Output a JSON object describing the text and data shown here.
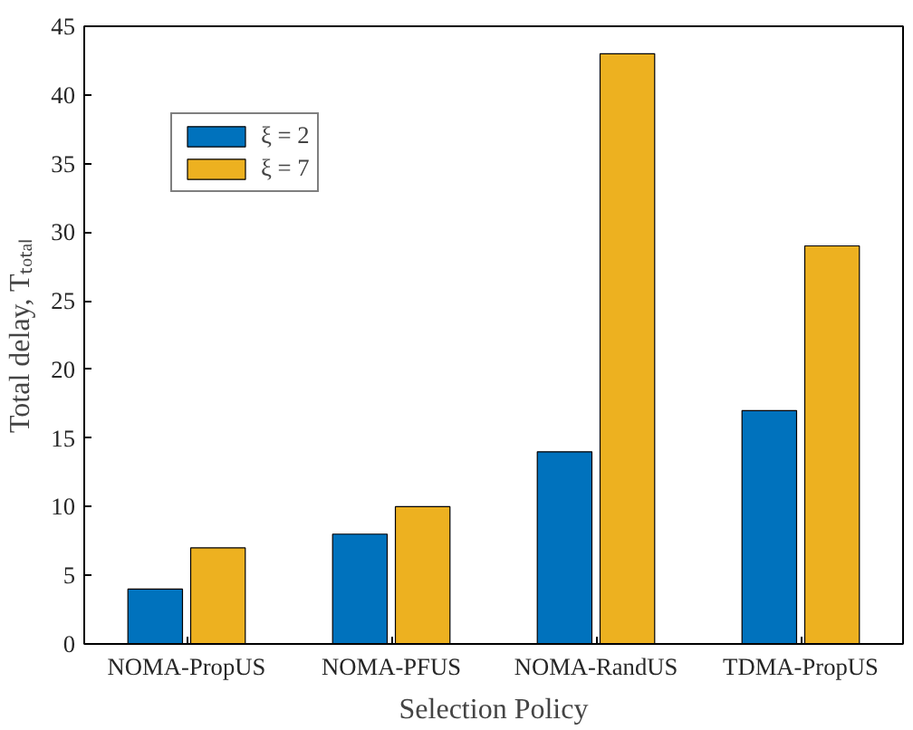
{
  "chart_data": {
    "type": "bar",
    "xlabel": "Selection Policy",
    "ylabel": "Total delay, Tₜₒₜₐₗ",
    "categories": [
      "NOMA-PropUS",
      "NOMA-PFUS",
      "NOMA-RandUS",
      "TDMA-PropUS"
    ],
    "series": [
      {
        "name": "ξ = 2",
        "color": "#0072bd",
        "values": [
          4,
          8,
          14,
          17
        ]
      },
      {
        "name": "ξ = 7",
        "color": "#edb120",
        "values": [
          7,
          10,
          43,
          29
        ]
      }
    ],
    "ylim": [
      0,
      45
    ],
    "yticks": [
      0,
      5,
      10,
      15,
      20,
      25,
      30,
      35,
      40,
      45
    ],
    "grid": false,
    "legend": "top left"
  }
}
